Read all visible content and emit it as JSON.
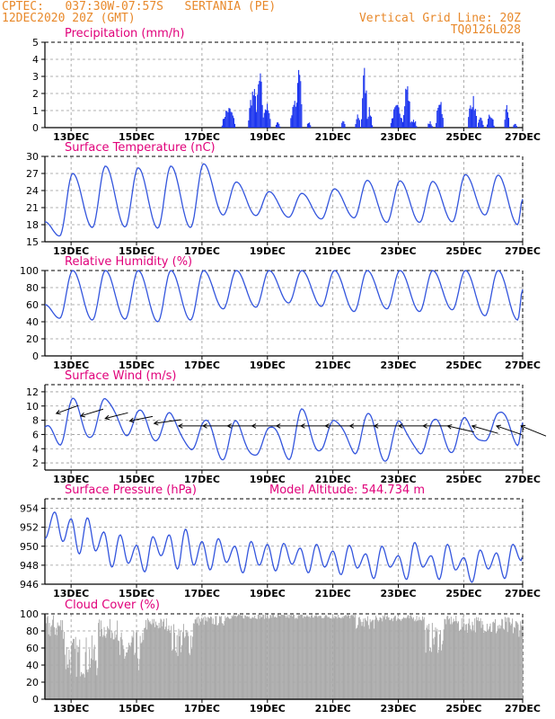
{
  "header": {
    "left_line1": "CPTEC:   037:30W-07:57S   SERTANIA (PE)",
    "left_line2": "12DEC2020 20Z (GMT)",
    "right_line1": "Vertical Grid Line: 20Z",
    "right_line2": "TQ0126L028"
  },
  "colors": {
    "header": "#e8892b",
    "panel_title": "#e0007a",
    "line": "#3355dd",
    "bar_precip": "#1a33ee",
    "bar_cloud": "#a9a9a9",
    "axis": "#000000"
  },
  "chart_data": [
    {
      "id": "precip",
      "type": "bar",
      "title": "Precipitation (mm/h)",
      "yticks": [
        0,
        1,
        2,
        3,
        4,
        5
      ],
      "ylim": [
        0,
        5
      ],
      "xticks": [
        "13DEC",
        "15DEC",
        "17DEC",
        "19DEC",
        "21DEC",
        "23DEC",
        "25DEC",
        "27DEC"
      ],
      "xrange_days": [
        0,
        14.6
      ],
      "grid": true,
      "bursts": [
        {
          "center": 5.6,
          "peak": 1.3,
          "width": 0.22
        },
        {
          "center": 6.35,
          "peak": 2.5,
          "width": 0.16
        },
        {
          "center": 6.55,
          "peak": 3.4,
          "width": 0.12
        },
        {
          "center": 6.75,
          "peak": 1.5,
          "width": 0.15
        },
        {
          "center": 7.1,
          "peak": 0.4,
          "width": 0.08
        },
        {
          "center": 7.75,
          "peak": 4.6,
          "width": 0.1
        },
        {
          "center": 7.6,
          "peak": 1.9,
          "width": 0.12
        },
        {
          "center": 8.05,
          "peak": 0.35,
          "width": 0.07
        },
        {
          "center": 9.1,
          "peak": 0.5,
          "width": 0.07
        },
        {
          "center": 9.55,
          "peak": 0.9,
          "width": 0.08
        },
        {
          "center": 9.75,
          "peak": 3.7,
          "width": 0.1
        },
        {
          "center": 9.9,
          "peak": 1.2,
          "width": 0.1
        },
        {
          "center": 10.75,
          "peak": 1.4,
          "width": 0.22
        },
        {
          "center": 11.05,
          "peak": 2.9,
          "width": 0.12
        },
        {
          "center": 11.25,
          "peak": 0.6,
          "width": 0.1
        },
        {
          "center": 11.75,
          "peak": 0.4,
          "width": 0.08
        },
        {
          "center": 12.05,
          "peak": 2.1,
          "width": 0.12
        },
        {
          "center": 13.05,
          "peak": 2.0,
          "width": 0.15
        },
        {
          "center": 13.3,
          "peak": 0.6,
          "width": 0.1
        },
        {
          "center": 13.6,
          "peak": 0.9,
          "width": 0.12
        },
        {
          "center": 14.1,
          "peak": 1.5,
          "width": 0.08
        },
        {
          "center": 14.35,
          "peak": 0.35,
          "width": 0.06
        }
      ]
    },
    {
      "id": "temp",
      "type": "line",
      "title": "Surface Temperature (nC)",
      "yticks": [
        15,
        18,
        21,
        24,
        27,
        30
      ],
      "ylim": [
        15,
        30
      ],
      "xticks": [
        "13DEC",
        "15DEC",
        "17DEC",
        "19DEC",
        "21DEC",
        "23DEC",
        "25DEC",
        "27DEC"
      ],
      "xrange_days": [
        0,
        14.6
      ],
      "grid": true,
      "daily_max": [
        27.0,
        28.3,
        28.0,
        28.3,
        28.7,
        25.5,
        23.8,
        23.5,
        24.3,
        25.8,
        25.7,
        25.6,
        26.8,
        26.7,
        28.6
      ],
      "daily_min": [
        16.0,
        17.5,
        17.6,
        17.4,
        17.5,
        19.7,
        19.6,
        19.3,
        19.0,
        19.2,
        18.4,
        18.4,
        18.5,
        19.7,
        18.0
      ],
      "start_value": 18.5,
      "end_value": 22.5
    },
    {
      "id": "rh",
      "type": "line",
      "title": "Relative Humidity (%)",
      "yticks": [
        0,
        20,
        40,
        60,
        80,
        100
      ],
      "ylim": [
        0,
        100
      ],
      "xticks": [
        "13DEC",
        "15DEC",
        "17DEC",
        "19DEC",
        "21DEC",
        "23DEC",
        "25DEC",
        "27DEC"
      ],
      "xrange_days": [
        0,
        14.6
      ],
      "grid": true,
      "daily_max": [
        100,
        100,
        100,
        100,
        100,
        100,
        100,
        100,
        100,
        100,
        100,
        100,
        100,
        100,
        100
      ],
      "daily_min": [
        44,
        42,
        43,
        40,
        42,
        55,
        57,
        62,
        58,
        52,
        55,
        52,
        54,
        47,
        42
      ],
      "start_value": 60,
      "end_value": 78
    },
    {
      "id": "wind",
      "type": "line",
      "title": "Surface Wind (m/s)",
      "yticks": [
        2,
        4,
        6,
        8,
        10,
        12
      ],
      "ylim": [
        1,
        13
      ],
      "xticks": [
        "13DEC",
        "15DEC",
        "17DEC",
        "19DEC",
        "21DEC",
        "23DEC",
        "25DEC",
        "27DEC"
      ],
      "xrange_days": [
        0,
        14.6
      ],
      "grid": true,
      "daily_max": [
        10.5,
        11.5,
        9.0,
        9.0,
        8.0,
        7.5,
        7.5,
        9.0,
        8.5,
        8.5,
        8.0,
        8.0,
        8.0,
        9.5,
        8.5
      ],
      "daily_min": [
        5.0,
        5.5,
        6.0,
        5.5,
        3.5,
        3.0,
        2.5,
        3.0,
        3.5,
        3.5,
        2.5,
        3.0,
        4.0,
        4.5,
        5.0
      ],
      "start_value": 7.0,
      "end_value": 8.0,
      "vectors": {
        "count": 20,
        "y_value": 7.2
      }
    },
    {
      "id": "pres",
      "type": "line",
      "title": "Surface Pressure (hPa)",
      "subtitle": "Model Altitude: 544.734 m",
      "yticks": [
        946,
        948,
        950,
        952,
        954
      ],
      "ylim": [
        946,
        955
      ],
      "xticks": [
        "13DEC",
        "15DEC",
        "17DEC",
        "19DEC",
        "21DEC",
        "23DEC",
        "25DEC",
        "27DEC"
      ],
      "xrange_days": [
        0,
        14.6
      ],
      "grid": true,
      "half_day_max": [
        953.6,
        952.9,
        953.0,
        951.5,
        951.2,
        950.1,
        951.0,
        951.2,
        951.8,
        950.5,
        950.8,
        950.0,
        950.5,
        950.2,
        950.3,
        949.8,
        950.2,
        949.5,
        950.1,
        949.2,
        950.0,
        949.0,
        950.4,
        949.0,
        950.2,
        948.8,
        949.6,
        949.3,
        950.2
      ],
      "half_day_min": [
        950.5,
        949.2,
        949.5,
        947.8,
        948.2,
        947.3,
        949.0,
        947.6,
        948.0,
        947.5,
        948.3,
        947.2,
        948.0,
        947.4,
        948.1,
        947.2,
        947.8,
        947.0,
        947.7,
        946.6,
        947.8,
        946.5,
        947.8,
        946.5,
        947.5,
        946.2,
        947.6,
        946.6,
        948.5
      ],
      "start_value": 950.8,
      "end_value": 949.0
    },
    {
      "id": "cloud",
      "type": "bar",
      "title": "Cloud Cover (%)",
      "yticks": [
        0,
        20,
        40,
        60,
        80,
        100
      ],
      "ylim": [
        0,
        100
      ],
      "xticks": [
        "13DEC",
        "15DEC",
        "17DEC",
        "19DEC",
        "21DEC",
        "23DEC",
        "25DEC",
        "27DEC"
      ],
      "xrange_days": [
        0,
        14.6
      ],
      "grid": true,
      "segments": [
        {
          "from": 0.0,
          "to": 0.6,
          "level": 85,
          "var": 15
        },
        {
          "from": 0.6,
          "to": 1.6,
          "level": 50,
          "var": 25
        },
        {
          "from": 1.6,
          "to": 2.2,
          "level": 82,
          "var": 12
        },
        {
          "from": 2.2,
          "to": 3.0,
          "level": 55,
          "var": 25
        },
        {
          "from": 3.0,
          "to": 3.8,
          "level": 88,
          "var": 8
        },
        {
          "from": 3.8,
          "to": 4.5,
          "level": 70,
          "var": 20
        },
        {
          "from": 4.5,
          "to": 5.5,
          "level": 92,
          "var": 6
        },
        {
          "from": 5.5,
          "to": 9.5,
          "level": 97,
          "var": 3
        },
        {
          "from": 9.5,
          "to": 10.2,
          "level": 90,
          "var": 8
        },
        {
          "from": 10.2,
          "to": 11.6,
          "level": 95,
          "var": 4
        },
        {
          "from": 11.6,
          "to": 12.2,
          "level": 72,
          "var": 18
        },
        {
          "from": 12.2,
          "to": 12.6,
          "level": 92,
          "var": 6
        },
        {
          "from": 12.6,
          "to": 13.6,
          "level": 88,
          "var": 10
        },
        {
          "from": 13.6,
          "to": 14.6,
          "level": 85,
          "var": 12
        }
      ]
    }
  ]
}
